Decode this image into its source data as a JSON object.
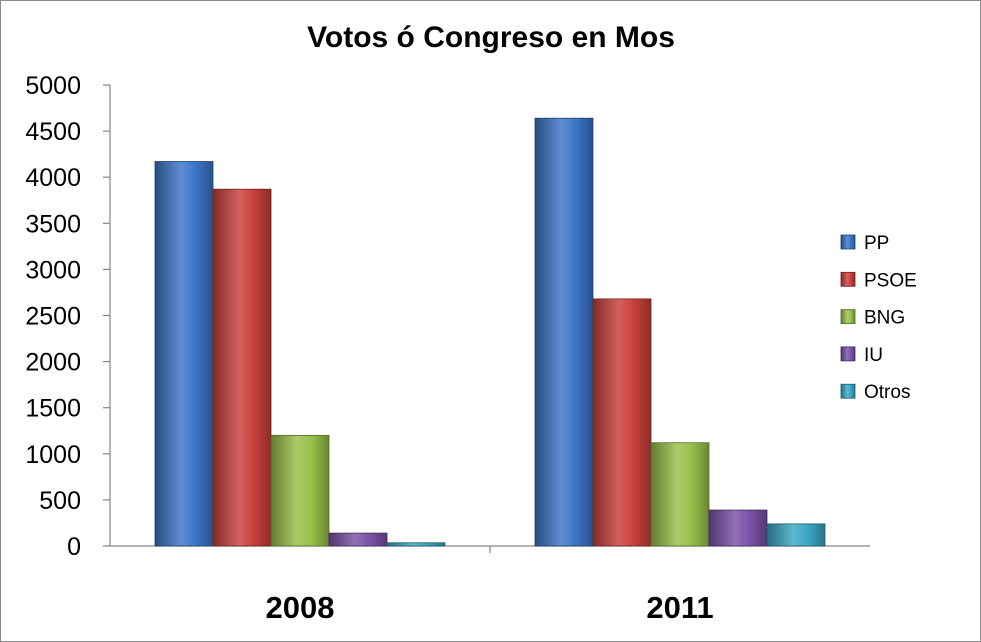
{
  "chart_data": {
    "type": "bar",
    "title": "Votos ó Congreso en Mos",
    "categories": [
      "2008",
      "2011"
    ],
    "series": [
      {
        "name": "PP",
        "values": [
          4170,
          4640
        ],
        "color": "#3c75c8"
      },
      {
        "name": "PSOE",
        "values": [
          3870,
          2680
        ],
        "color": "#c8403c"
      },
      {
        "name": "BNG",
        "values": [
          1200,
          1120
        ],
        "color": "#98c048"
      },
      {
        "name": "IU",
        "values": [
          140,
          390
        ],
        "color": "#7a52a8"
      },
      {
        "name": "Otros",
        "values": [
          35,
          240
        ],
        "color": "#3aa8c4"
      }
    ],
    "ylim": [
      0,
      5000
    ],
    "yticks": [
      "0",
      "500",
      "1000",
      "1500",
      "2000",
      "2500",
      "3000",
      "3500",
      "4000",
      "4500",
      "5000"
    ],
    "grid": false,
    "legend_position": "right"
  }
}
